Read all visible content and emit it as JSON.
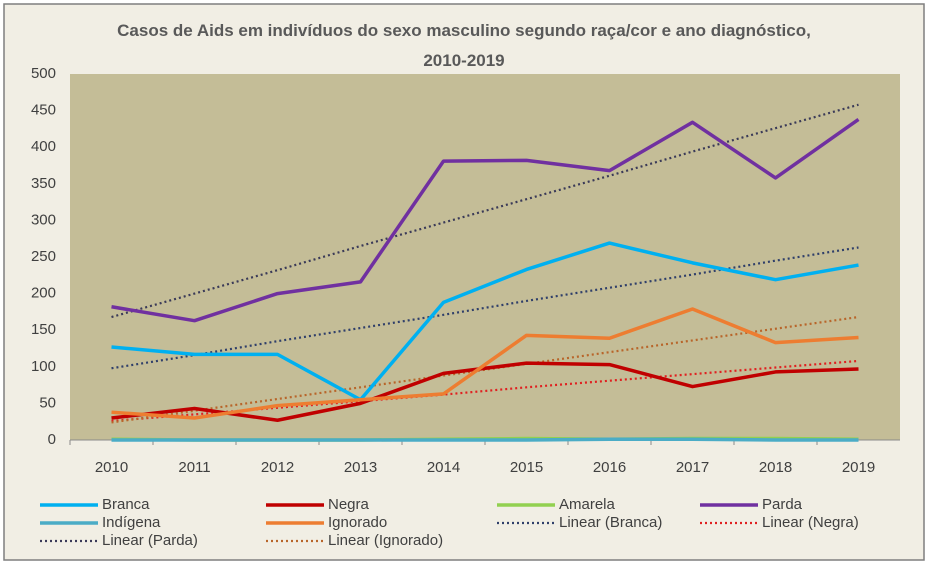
{
  "chart_data": {
    "type": "line",
    "title": "Casos de Aids em indivíduos do sexo masculino segundo raça/cor e ano diagnóstico, 2010-2019",
    "categories": [
      "2010",
      "2011",
      "2012",
      "2013",
      "2014",
      "2015",
      "2016",
      "2017",
      "2018",
      "2019"
    ],
    "ylim": [
      0,
      500
    ],
    "yticks": [
      0,
      50,
      100,
      150,
      200,
      250,
      300,
      350,
      400,
      450,
      500
    ],
    "grid": false,
    "legend": "bottom",
    "series": [
      {
        "name": "Branca",
        "color": "#00b0f0",
        "style": "solid",
        "values": [
          127,
          117,
          117,
          55,
          188,
          233,
          269,
          242,
          219,
          239
        ]
      },
      {
        "name": "Negra",
        "color": "#c00000",
        "style": "solid",
        "values": [
          30,
          43,
          27,
          50,
          91,
          105,
          103,
          73,
          93,
          97
        ]
      },
      {
        "name": "Amarela",
        "color": "#92d050",
        "style": "solid",
        "values": [
          1,
          0,
          0,
          0,
          1,
          2,
          1,
          2,
          2,
          1
        ]
      },
      {
        "name": "Parda",
        "color": "#7030a0",
        "style": "solid",
        "values": [
          182,
          163,
          200,
          216,
          381,
          382,
          368,
          434,
          358,
          438
        ]
      },
      {
        "name": "Indígena",
        "color": "#4bacc6",
        "style": "solid",
        "values": [
          0,
          0,
          0,
          0,
          0,
          0,
          1,
          1,
          0,
          0
        ]
      },
      {
        "name": "Ignorado",
        "color": "#ed7d31",
        "style": "solid",
        "values": [
          38,
          30,
          47,
          55,
          63,
          143,
          139,
          179,
          133,
          140
        ]
      },
      {
        "name": "Linear (Branca)",
        "color": "#2f3f6a",
        "style": "dotted",
        "values": [
          98,
          116,
          135,
          153,
          171,
          190,
          208,
          226,
          245,
          263
        ]
      },
      {
        "name": "Linear (Negra)",
        "color": "#e02020",
        "style": "dotted",
        "values": [
          26,
          35,
          44,
          53,
          62,
          72,
          81,
          90,
          99,
          108
        ]
      },
      {
        "name": "Linear (Parda)",
        "color": "#3a3a58",
        "style": "dotted",
        "values": [
          168,
          200,
          232,
          265,
          297,
          329,
          361,
          394,
          426,
          458
        ]
      },
      {
        "name": "Linear (Ignorado)",
        "color": "#b8652a",
        "style": "dotted",
        "values": [
          24,
          40,
          56,
          72,
          88,
          104,
          120,
          136,
          152,
          168
        ]
      }
    ]
  }
}
